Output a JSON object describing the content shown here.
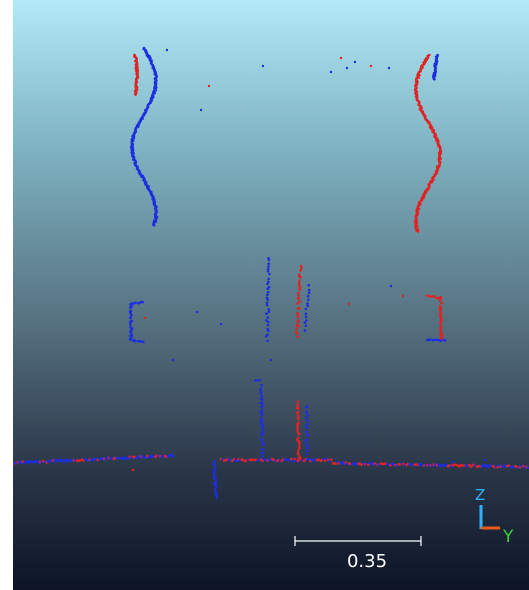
{
  "viewer": {
    "scale_value": "0.35",
    "axis_labels": {
      "z": "Z",
      "y": "Y"
    }
  },
  "colors": {
    "series_a": "#1c2fe0",
    "series_b": "#e02323",
    "axis_z": "#2fb0ff",
    "axis_x": "#e85a1a",
    "axis_y": "#3cd43c",
    "scale_bar": "#ffffff"
  }
}
